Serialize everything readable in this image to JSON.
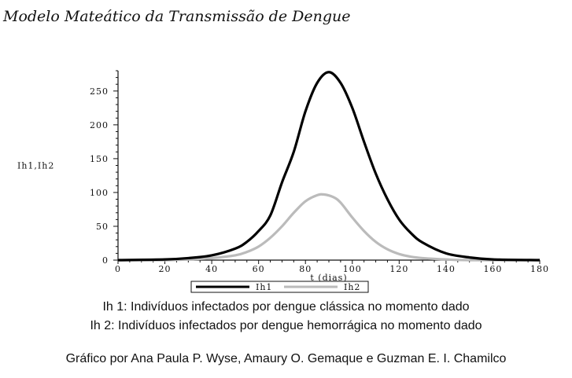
{
  "page": {
    "title": "Modelo Mateático da Transmissão de Dengue",
    "caption_ih1": "Ih 1: Indivíduos infectados por dengue clássica no momento dado",
    "caption_ih2": "Ih 2: Indivíduos infectados por dengue hemorrágica no momento dado",
    "credit": "Gráfico por Ana Paula P. Wyse, Amaury O. Gemaque e Guzman E. I. Chamilco"
  },
  "chart_data": {
    "type": "line",
    "title": "",
    "xlabel": "t (dias)",
    "ylabel": "Ih1,Ih2",
    "xlim": [
      0,
      180
    ],
    "ylim": [
      0,
      280
    ],
    "xticks": [
      0,
      20,
      40,
      60,
      80,
      100,
      120,
      140,
      160,
      180
    ],
    "yticks": [
      0,
      50,
      100,
      150,
      200,
      250
    ],
    "grid": false,
    "legend_position": "bottom",
    "series": [
      {
        "name": "Ih1",
        "color": "#000000",
        "x": [
          0,
          20,
          30,
          40,
          50,
          55,
          60,
          65,
          70,
          75,
          80,
          85,
          90,
          95,
          100,
          105,
          110,
          115,
          120,
          125,
          130,
          140,
          150,
          160,
          180
        ],
        "y": [
          0,
          1,
          3,
          7,
          17,
          27,
          43,
          66,
          115,
          160,
          220,
          262,
          278,
          262,
          225,
          175,
          128,
          90,
          60,
          40,
          26,
          10,
          4,
          1,
          0
        ]
      },
      {
        "name": "Ih2",
        "color": "#bbbbbb",
        "x": [
          0,
          20,
          30,
          40,
          50,
          55,
          60,
          65,
          70,
          75,
          80,
          85,
          88,
          92,
          95,
          100,
          105,
          110,
          115,
          120,
          125,
          130,
          140,
          150,
          180
        ],
        "y": [
          0,
          0,
          1,
          3,
          7,
          12,
          20,
          33,
          50,
          70,
          87,
          96,
          97,
          93,
          85,
          63,
          43,
          27,
          16,
          9,
          5,
          3,
          1,
          0,
          0
        ]
      }
    ]
  }
}
